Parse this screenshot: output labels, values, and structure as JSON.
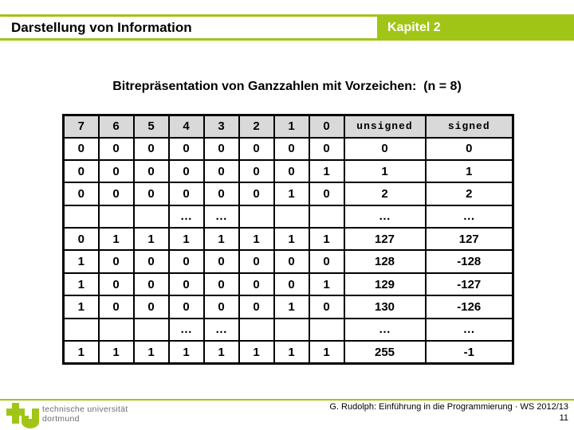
{
  "header": {
    "title": "Darstellung von Information",
    "chapter": "Kapitel 2"
  },
  "slide_title": "Bitrepräsentation von Ganzzahlen mit Vorzeichen:  (n = 8)",
  "table": {
    "headers": [
      "7",
      "6",
      "5",
      "4",
      "3",
      "2",
      "1",
      "0",
      "unsigned",
      "signed"
    ],
    "rows": [
      [
        "0",
        "0",
        "0",
        "0",
        "0",
        "0",
        "0",
        "0",
        "0",
        "0"
      ],
      [
        "0",
        "0",
        "0",
        "0",
        "0",
        "0",
        "0",
        "1",
        "1",
        "1"
      ],
      [
        "0",
        "0",
        "0",
        "0",
        "0",
        "0",
        "1",
        "0",
        "2",
        "2"
      ],
      [
        "",
        "",
        "",
        "…",
        "…",
        "",
        "",
        "",
        "…",
        "…"
      ],
      [
        "0",
        "1",
        "1",
        "1",
        "1",
        "1",
        "1",
        "1",
        "127",
        "127"
      ],
      [
        "1",
        "0",
        "0",
        "0",
        "0",
        "0",
        "0",
        "0",
        "128",
        "-128"
      ],
      [
        "1",
        "0",
        "0",
        "0",
        "0",
        "0",
        "0",
        "1",
        "129",
        "-127"
      ],
      [
        "1",
        "0",
        "0",
        "0",
        "0",
        "0",
        "1",
        "0",
        "130",
        "-126"
      ],
      [
        "",
        "",
        "",
        "…",
        "…",
        "",
        "",
        "",
        "…",
        "…"
      ],
      [
        "1",
        "1",
        "1",
        "1",
        "1",
        "1",
        "1",
        "1",
        "255",
        "-1"
      ]
    ]
  },
  "footer": {
    "credit": "G. Rudolph: Einführung in die Programmierung · WS 2012/13",
    "page": "11",
    "logo_line1": "technische universität",
    "logo_line2": "dortmund"
  },
  "colors": {
    "accent_green": "#A1C517",
    "table_header_gray": "#D9D9D9",
    "logo_text_gray": "#6E6E6E"
  }
}
